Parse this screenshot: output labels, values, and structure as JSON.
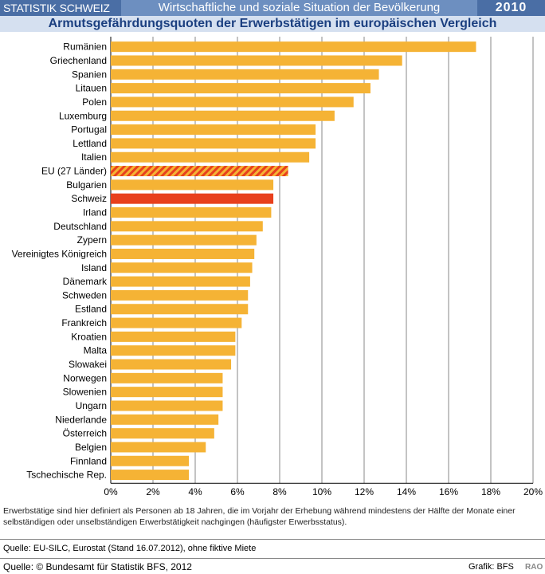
{
  "header": {
    "brand": "STATISTIK SCHWEIZ",
    "section": "Wirtschaftliche und soziale Situation der Bevölkerung",
    "year": "2010",
    "colors": {
      "dark": "#4a6ea5",
      "mid": "#6d8fc0",
      "subtitle_bg": "#d5e0f0",
      "subtitle_text": "#1b3f80"
    }
  },
  "chart_data": {
    "type": "bar",
    "orientation": "horizontal",
    "title": "Armutsgefährdungsquoten der Erwerbstätigen im europäischen Vergleich",
    "categories": [
      "Rumänien",
      "Griechenland",
      "Spanien",
      "Litauen",
      "Polen",
      "Luxemburg",
      "Portugal",
      "Lettland",
      "Italien",
      "EU (27 Länder)",
      "Bulgarien",
      "Schweiz",
      "Irland",
      "Deutschland",
      "Zypern",
      "Vereinigtes Königreich",
      "Island",
      "Dänemark",
      "Schweden",
      "Estland",
      "Frankreich",
      "Kroatien",
      "Malta",
      "Slowakei",
      "Norwegen",
      "Slowenien",
      "Ungarn",
      "Niederlande",
      "Österreich",
      "Belgien",
      "Finnland",
      "Tschechische Rep."
    ],
    "values": [
      17.3,
      13.8,
      12.7,
      12.3,
      11.5,
      10.6,
      9.7,
      9.7,
      9.4,
      8.4,
      7.7,
      7.7,
      7.6,
      7.2,
      6.9,
      6.8,
      6.7,
      6.6,
      6.5,
      6.5,
      6.2,
      5.9,
      5.9,
      5.7,
      5.3,
      5.3,
      5.3,
      5.1,
      4.9,
      4.5,
      3.7,
      3.7
    ],
    "highlight": {
      "EU (27 Länder)": "hatched",
      "Schweiz": "red"
    },
    "colors": {
      "bar": "#f5b335",
      "highlight": "#e8401c",
      "hatch": "#e8401c"
    },
    "xlim": [
      0,
      20
    ],
    "xticks": [
      "0%",
      "2%",
      "4%",
      "6%",
      "8%",
      "10%",
      "12%",
      "14%",
      "16%",
      "18%",
      "20%"
    ],
    "grid": true
  },
  "note": "Erwerbstätige sind hier definiert als Personen ab 18 Jahren, die im Vorjahr der Erhebung während mindestens der Hälfte der Monate einer selbständigen oder unselbständigen Erwerbstätigkeit nachgingen (häufigster Erwerbsstatus).",
  "source": "Quelle: EU-SILC, Eurostat (Stand 16.07.2012), ohne fiktive Miete",
  "footer": {
    "copyright": "Quelle: © Bundesamt für Statistik BFS, 2012",
    "grafik": "Grafik: BFS",
    "rao": "RAO"
  }
}
